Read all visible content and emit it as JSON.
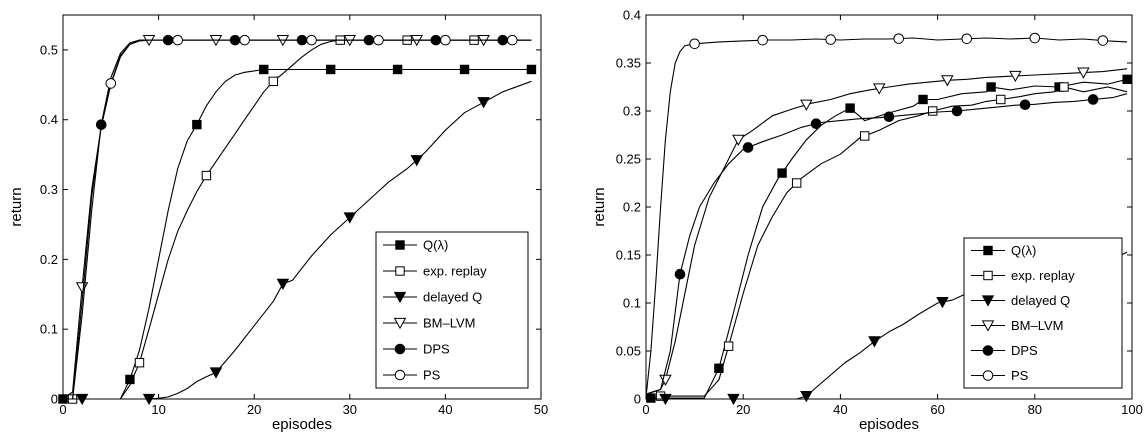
{
  "chart_data": [
    {
      "type": "line",
      "xlabel": "episodes",
      "ylabel": "return",
      "xlim": [
        0,
        50
      ],
      "ylim": [
        0,
        0.55
      ],
      "xticks": [
        "0",
        "10",
        "20",
        "30",
        "40",
        "50"
      ],
      "yticks": [
        "0",
        "0.1",
        "0.2",
        "0.3",
        "0.4",
        "0.5"
      ],
      "legend": "right-middle",
      "series": [
        {
          "name": "Q(λ)",
          "marker": "square-filled",
          "x": [
            0,
            6,
            7,
            8,
            9,
            10,
            11,
            12,
            13,
            14,
            15,
            16,
            17,
            18,
            19,
            20,
            21,
            22,
            28,
            35,
            42,
            49
          ],
          "y": [
            0,
            0,
            0.028,
            0.07,
            0.13,
            0.2,
            0.27,
            0.33,
            0.37,
            0.393,
            0.42,
            0.44,
            0.455,
            0.464,
            0.468,
            0.47,
            0.472,
            0.472,
            0.472,
            0.472,
            0.472,
            0.472
          ],
          "markers_at": [
            0,
            7,
            14,
            21,
            28,
            35,
            42,
            49
          ]
        },
        {
          "name": "exp. replay",
          "marker": "square-open",
          "x": [
            1,
            6,
            7,
            8,
            9,
            10,
            11,
            12,
            13,
            14,
            15,
            16,
            17,
            18,
            19,
            20,
            21,
            22,
            23,
            24,
            25,
            26,
            27,
            28,
            29,
            30,
            36,
            43,
            49
          ],
          "y": [
            0,
            0,
            0.02,
            0.052,
            0.1,
            0.15,
            0.2,
            0.24,
            0.27,
            0.297,
            0.32,
            0.34,
            0.36,
            0.38,
            0.4,
            0.42,
            0.44,
            0.455,
            0.466,
            0.478,
            0.49,
            0.5,
            0.508,
            0.512,
            0.514,
            0.514,
            0.514,
            0.514,
            0.514
          ],
          "markers_at": [
            1,
            8,
            15,
            22,
            29,
            36,
            43
          ]
        },
        {
          "name": "delayed Q",
          "marker": "triangle-down-filled",
          "x": [
            0,
            9,
            10,
            11,
            12,
            13,
            14,
            15,
            16,
            18,
            20,
            22,
            23,
            24,
            26,
            28,
            30,
            32,
            34,
            36,
            37,
            38,
            40,
            42,
            44,
            46,
            48,
            49
          ],
          "y": [
            0,
            0,
            0.001,
            0.003,
            0.008,
            0.015,
            0.025,
            0.032,
            0.038,
            0.07,
            0.105,
            0.14,
            0.165,
            0.17,
            0.205,
            0.235,
            0.26,
            0.285,
            0.31,
            0.33,
            0.342,
            0.355,
            0.385,
            0.41,
            0.425,
            0.44,
            0.45,
            0.455
          ],
          "markers_at": [
            2,
            9,
            16,
            23,
            30,
            37,
            44
          ]
        },
        {
          "name": "BM–LVM",
          "marker": "triangle-down-open",
          "x": [
            0,
            1,
            2,
            3,
            4,
            5,
            6,
            7,
            8,
            9,
            10,
            16,
            23,
            30,
            37,
            44,
            49
          ],
          "y": [
            0,
            0.01,
            0.16,
            0.3,
            0.39,
            0.45,
            0.49,
            0.508,
            0.513,
            0.514,
            0.514,
            0.514,
            0.514,
            0.514,
            0.514,
            0.514,
            0.514
          ],
          "markers_at": [
            2,
            9,
            16,
            23,
            30,
            37,
            44
          ]
        },
        {
          "name": "DPS",
          "marker": "circle-filled",
          "x": [
            1,
            2,
            3,
            4,
            5,
            6,
            7,
            8,
            9,
            11,
            18,
            25,
            32,
            39,
            46,
            49
          ],
          "y": [
            0,
            0.12,
            0.27,
            0.393,
            0.46,
            0.495,
            0.51,
            0.514,
            0.514,
            0.514,
            0.514,
            0.514,
            0.514,
            0.514,
            0.514,
            0.514
          ],
          "markers_at": [
            4,
            11,
            18,
            25,
            32,
            39,
            46
          ]
        },
        {
          "name": "PS",
          "marker": "circle-open",
          "x": [
            0,
            1,
            2,
            3,
            4,
            5,
            6,
            7,
            8,
            9,
            12,
            19,
            26,
            33,
            40,
            47,
            49
          ],
          "y": [
            0,
            0,
            0.14,
            0.29,
            0.39,
            0.452,
            0.492,
            0.508,
            0.513,
            0.514,
            0.514,
            0.514,
            0.514,
            0.514,
            0.514,
            0.514,
            0.514
          ],
          "markers_at": [
            5,
            12,
            19,
            26,
            33,
            40,
            47
          ]
        }
      ]
    },
    {
      "type": "line",
      "xlabel": "episodes",
      "ylabel": "return",
      "xlim": [
        0,
        100
      ],
      "ylim": [
        0,
        0.4
      ],
      "xticks": [
        "0",
        "20",
        "40",
        "60",
        "80",
        "100"
      ],
      "yticks": [
        "0",
        "0.05",
        "0.1",
        "0.15",
        "0.2",
        "0.25",
        "0.3",
        "0.35",
        "0.4"
      ],
      "legend": "bottom-right",
      "series": [
        {
          "name": "Q(λ)",
          "marker": "square-filled",
          "x": [
            0,
            12,
            15,
            18,
            21,
            24,
            27,
            30,
            33,
            36,
            39,
            42,
            45,
            50,
            55,
            57,
            60,
            65,
            70,
            71,
            75,
            80,
            85,
            90,
            95,
            99
          ],
          "y": [
            0.001,
            0.001,
            0.032,
            0.09,
            0.15,
            0.2,
            0.228,
            0.25,
            0.27,
            0.285,
            0.295,
            0.303,
            0.29,
            0.298,
            0.305,
            0.312,
            0.312,
            0.318,
            0.32,
            0.325,
            0.322,
            0.326,
            0.325,
            0.33,
            0.328,
            0.333
          ],
          "markers_at": [
            1,
            15,
            28,
            42,
            57,
            71,
            85,
            99
          ]
        },
        {
          "name": "exp. replay",
          "marker": "square-open",
          "x": [
            2,
            12,
            15,
            17,
            20,
            23,
            26,
            29,
            32,
            36,
            40,
            44,
            48,
            52,
            56,
            59,
            63,
            67,
            70,
            73,
            77,
            80,
            84,
            86,
            90,
            95,
            99
          ],
          "y": [
            0.003,
            0.003,
            0.02,
            0.055,
            0.11,
            0.16,
            0.19,
            0.215,
            0.23,
            0.245,
            0.255,
            0.272,
            0.28,
            0.29,
            0.295,
            0.3,
            0.305,
            0.306,
            0.31,
            0.312,
            0.315,
            0.318,
            0.32,
            0.325,
            0.32,
            0.325,
            0.32
          ],
          "markers_at": [
            3,
            17,
            31,
            45,
            59,
            73,
            86
          ]
        },
        {
          "name": "delayed Q",
          "marker": "triangle-down-filled",
          "x": [
            0,
            31,
            33,
            35,
            38,
            41,
            44,
            47,
            50,
            53,
            56,
            60,
            63,
            66,
            70,
            74,
            78,
            82,
            86,
            90,
            94,
            97,
            99
          ],
          "y": [
            0,
            0,
            0.003,
            0.012,
            0.025,
            0.038,
            0.048,
            0.06,
            0.07,
            0.078,
            0.088,
            0.1,
            0.103,
            0.11,
            0.115,
            0.12,
            0.125,
            0.13,
            0.135,
            0.14,
            0.145,
            0.148,
            0.153
          ],
          "markers_at": [
            4,
            18,
            33,
            47,
            61,
            75,
            89
          ]
        },
        {
          "name": "BM–LVM",
          "marker": "triangle-down-open",
          "x": [
            0,
            3,
            4,
            6,
            8,
            10,
            13,
            16,
            19,
            22,
            26,
            30,
            34,
            38,
            42,
            46,
            50,
            54,
            58,
            62,
            66,
            70,
            74,
            78,
            82,
            86,
            90,
            94,
            99
          ],
          "y": [
            0.005,
            0.01,
            0.02,
            0.06,
            0.11,
            0.16,
            0.21,
            0.24,
            0.27,
            0.28,
            0.295,
            0.302,
            0.308,
            0.312,
            0.318,
            0.322,
            0.325,
            0.328,
            0.33,
            0.332,
            0.333,
            0.335,
            0.336,
            0.337,
            0.338,
            0.339,
            0.34,
            0.341,
            0.344
          ],
          "markers_at": [
            4,
            19,
            33,
            48,
            62,
            76,
            90
          ]
        },
        {
          "name": "DPS",
          "marker": "circle-filled",
          "x": [
            0,
            3,
            5,
            7,
            9,
            11,
            14,
            17,
            20,
            24,
            28,
            32,
            36,
            40,
            44,
            48,
            52,
            56,
            60,
            64,
            68,
            72,
            76,
            80,
            84,
            88,
            92,
            96,
            99
          ],
          "y": [
            0.005,
            0.01,
            0.05,
            0.13,
            0.17,
            0.2,
            0.225,
            0.245,
            0.26,
            0.268,
            0.275,
            0.283,
            0.288,
            0.29,
            0.292,
            0.293,
            0.295,
            0.297,
            0.299,
            0.3,
            0.302,
            0.304,
            0.306,
            0.307,
            0.309,
            0.31,
            0.312,
            0.314,
            0.318
          ],
          "markers_at": [
            7,
            21,
            35,
            50,
            64,
            78,
            92
          ]
        },
        {
          "name": "PS",
          "marker": "circle-open",
          "x": [
            0,
            1,
            2,
            3,
            4,
            5,
            6,
            7,
            8,
            10,
            15,
            20,
            25,
            30,
            35,
            40,
            45,
            50,
            55,
            60,
            65,
            70,
            75,
            80,
            85,
            90,
            95,
            99
          ],
          "y": [
            0.002,
            0.05,
            0.12,
            0.2,
            0.27,
            0.32,
            0.35,
            0.362,
            0.368,
            0.37,
            0.372,
            0.373,
            0.374,
            0.374,
            0.375,
            0.374,
            0.375,
            0.375,
            0.376,
            0.374,
            0.375,
            0.376,
            0.375,
            0.376,
            0.374,
            0.375,
            0.373,
            0.372
          ],
          "markers_at": [
            10,
            24,
            38,
            52,
            66,
            80,
            94
          ]
        }
      ]
    }
  ]
}
